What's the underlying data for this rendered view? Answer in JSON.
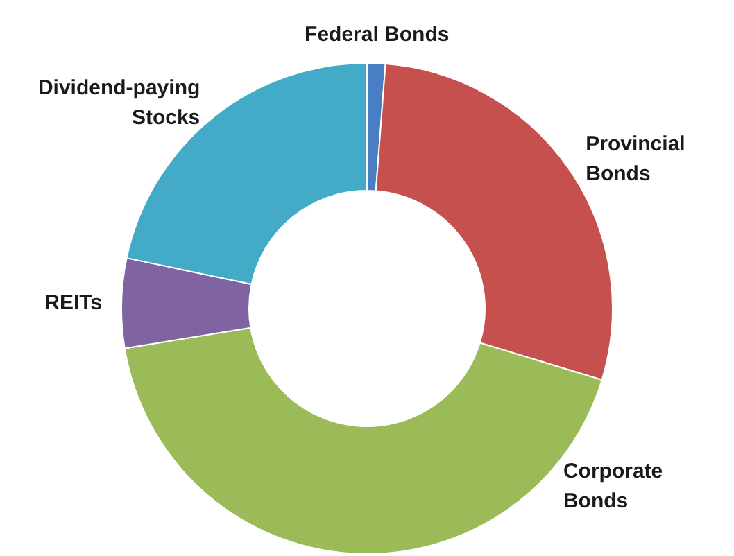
{
  "chart_data": {
    "type": "donut",
    "categories": [
      "Federal Bonds",
      "Provincial Bonds",
      "Corporate Bonds",
      "REITs",
      "Dividend-paying Stocks"
    ],
    "values": [
      1.2,
      28.5,
      42.7,
      5.9,
      21.7
    ],
    "colors": [
      "#4a7ec2",
      "#c5504e",
      "#9bbb59",
      "#8064a2",
      "#43abc7"
    ]
  }
}
